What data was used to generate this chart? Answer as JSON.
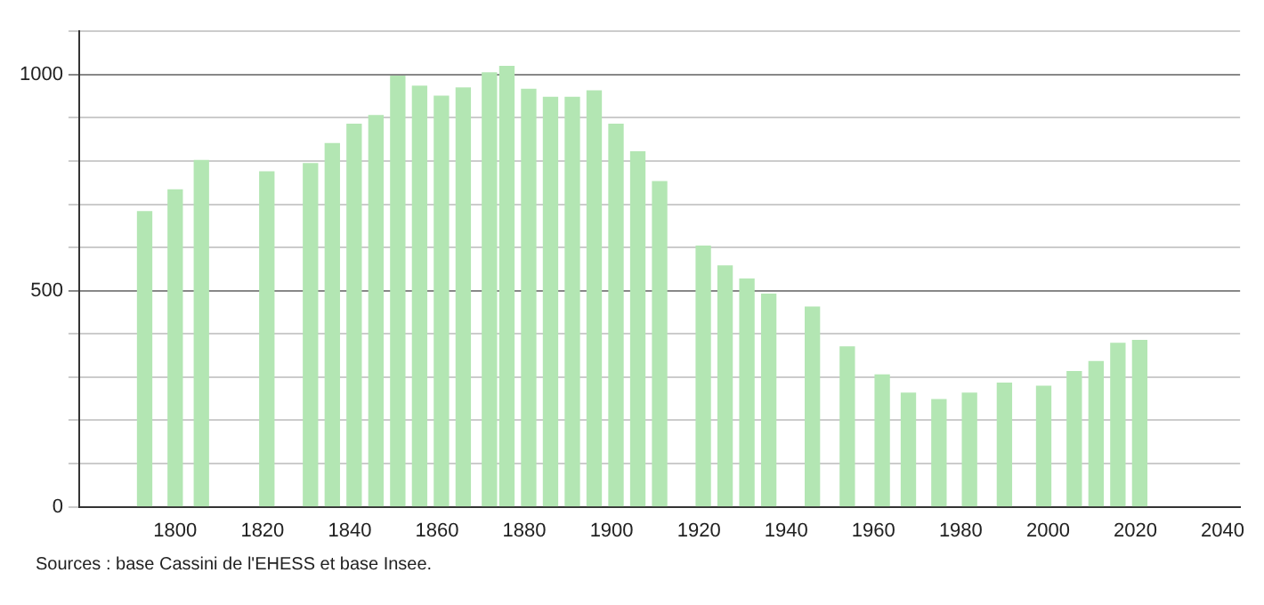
{
  "chart_data": {
    "type": "bar",
    "x": [
      1793,
      1800,
      1806,
      1821,
      1831,
      1836,
      1841,
      1846,
      1851,
      1856,
      1861,
      1866,
      1872,
      1876,
      1881,
      1886,
      1891,
      1896,
      1901,
      1906,
      1911,
      1921,
      1926,
      1931,
      1936,
      1946,
      1954,
      1962,
      1968,
      1975,
      1982,
      1990,
      1999,
      2006,
      2011,
      2016,
      2021
    ],
    "values": [
      683,
      733,
      801,
      775,
      794,
      840,
      885,
      905,
      996,
      973,
      950,
      969,
      1004,
      1019,
      966,
      947,
      947,
      962,
      885,
      821,
      752,
      603,
      557,
      527,
      492,
      462,
      370,
      305,
      263,
      248,
      263,
      286,
      279,
      313,
      336,
      378,
      385
    ],
    "color": "#b3e6b3",
    "xlim": [
      1778,
      2044
    ],
    "xticks": [
      1800,
      1820,
      1840,
      1860,
      1880,
      1900,
      1920,
      1940,
      1960,
      1980,
      2000,
      2020,
      2040
    ],
    "ylim": [
      0,
      1100
    ],
    "yticks": [
      0,
      {
        "value": 100,
        "label": null
      },
      {
        "value": 200,
        "label": null
      },
      {
        "value": 300,
        "label": null
      },
      {
        "value": 400,
        "label": null
      },
      500,
      {
        "value": 600,
        "label": null
      },
      {
        "value": 700,
        "label": null
      },
      {
        "value": 800,
        "label": null
      },
      {
        "value": 900,
        "label": null
      },
      1000,
      {
        "value": 1100,
        "label": null
      }
    ],
    "grid": "y",
    "legend": false,
    "annotations": [
      "Sources : base Cassini de l'EHESS et base Insee."
    ]
  }
}
